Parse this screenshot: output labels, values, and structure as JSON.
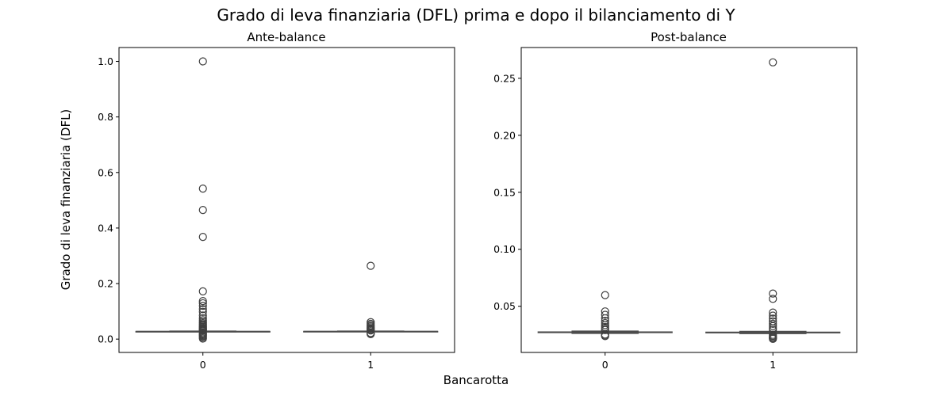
{
  "figure": {
    "suptitle": "Grado di leva finanziaria (DFL) prima e dopo il bilanciamento di Y",
    "shared_xlabel": "Bancarotta",
    "shared_ylabel": "Grado di leva finanziaria (DFL)"
  },
  "style": {
    "box_color": "#4c4c4c",
    "outlier_edge": "#3f3f3f",
    "axes_color": "#000000",
    "background": "#ffffff"
  },
  "chart_data": [
    {
      "type": "box",
      "title": "Ante-balance",
      "xlabel": "",
      "ylabel": "Grado di leva finanziaria (DFL)",
      "categories": [
        "0",
        "1"
      ],
      "xlim": [
        -0.5,
        1.5
      ],
      "ylim": [
        -0.048,
        1.05
      ],
      "yticks": [
        0.0,
        0.2,
        0.4,
        0.6,
        0.8,
        1.0
      ],
      "ytick_labels": [
        "0.0",
        "0.2",
        "0.4",
        "0.6",
        "0.8",
        "1.0"
      ],
      "grid": false,
      "boxes": [
        {
          "category": "0",
          "q1": 0.027,
          "median": 0.0275,
          "q3": 0.028,
          "whisker_low": 0.0262,
          "whisker_high": 0.0288,
          "outliers": [
            1.0,
            0.542,
            0.465,
            0.368,
            0.172,
            0.137,
            0.129,
            0.12,
            0.108,
            0.098,
            0.085,
            0.075,
            0.068,
            0.062,
            0.057,
            0.053,
            0.049,
            0.045,
            0.041,
            0.038,
            0.035,
            0.033,
            0.031,
            0.022,
            0.019,
            0.016,
            0.013,
            0.01,
            0.006,
            0.002
          ]
        },
        {
          "category": "1",
          "q1": 0.0272,
          "median": 0.0277,
          "q3": 0.0282,
          "whisker_low": 0.0265,
          "whisker_high": 0.029,
          "outliers": [
            0.264,
            0.061,
            0.055,
            0.05,
            0.046,
            0.042,
            0.038,
            0.034,
            0.031,
            0.022,
            0.02,
            0.018
          ]
        }
      ]
    },
    {
      "type": "box",
      "title": "Post-balance",
      "xlabel": "",
      "ylabel": "",
      "categories": [
        "0",
        "1"
      ],
      "xlim": [
        -0.5,
        1.5
      ],
      "ylim": [
        0.0095,
        0.277
      ],
      "yticks": [
        0.05,
        0.1,
        0.15,
        0.2,
        0.25
      ],
      "ytick_labels": [
        "0.05",
        "0.10",
        "0.15",
        "0.20",
        "0.25"
      ],
      "grid": false,
      "boxes": [
        {
          "category": "0",
          "q1": 0.0268,
          "median": 0.0272,
          "q3": 0.0276,
          "whisker_low": 0.0262,
          "whisker_high": 0.0282,
          "outliers": [
            0.0598,
            0.0455,
            0.0425,
            0.0395,
            0.0372,
            0.0352,
            0.0335,
            0.0318,
            0.0304,
            0.0292,
            0.0252,
            0.0244,
            0.0238
          ]
        },
        {
          "category": "1",
          "q1": 0.0266,
          "median": 0.027,
          "q3": 0.0274,
          "whisker_low": 0.026,
          "whisker_high": 0.028,
          "outliers": [
            0.264,
            0.0612,
            0.0565,
            0.0445,
            0.0418,
            0.0392,
            0.0368,
            0.0346,
            0.0326,
            0.0308,
            0.0292,
            0.025,
            0.024,
            0.023,
            0.0222,
            0.0214
          ]
        }
      ]
    }
  ]
}
